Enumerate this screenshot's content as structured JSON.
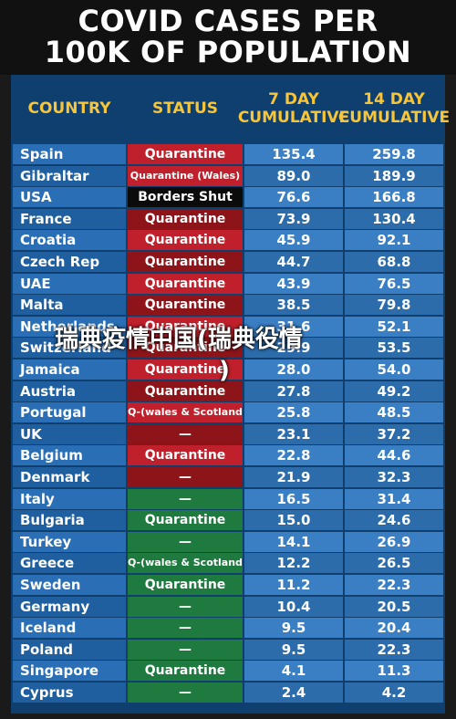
{
  "title_line1": "COVID CASES PER",
  "title_line2": "100K OF POPULATION",
  "watermark_line1": "瑞典疫情中国(瑞典役情",
  "watermark_line2": ")",
  "headers": {
    "country": "COUNTRY",
    "status": "STATUS",
    "day7": "7 DAY\nCUMULATIVE",
    "day14": "14 DAY\nCUMULATIVE"
  },
  "colors": {
    "red": "#c0202b",
    "darkred": "#8d1419",
    "black": "#0b0b0b",
    "green": "#1f7a3f"
  },
  "chart_data": {
    "type": "table",
    "title": "COVID CASES PER 100K OF POPULATION",
    "columns": [
      "COUNTRY",
      "STATUS",
      "7 DAY CUMULATIVE",
      "14 DAY CUMULATIVE"
    ],
    "rows": [
      {
        "country": "Spain",
        "status": "Quarantine",
        "s": "red",
        "v7": "135.4",
        "v14": "259.8"
      },
      {
        "country": "Gibraltar",
        "status": "Quarantine (Wales)",
        "s": "red",
        "v7": "89.0",
        "v14": "189.9",
        "small": true
      },
      {
        "country": "USA",
        "status": "Borders Shut",
        "s": "black",
        "v7": "76.6",
        "v14": "166.8"
      },
      {
        "country": "France",
        "status": "Quarantine",
        "s": "darkred",
        "v7": "73.9",
        "v14": "130.4"
      },
      {
        "country": "Croatia",
        "status": "Quarantine",
        "s": "red",
        "v7": "45.9",
        "v14": "92.1"
      },
      {
        "country": "Czech Rep",
        "status": "Quarantine",
        "s": "darkred",
        "v7": "44.7",
        "v14": "68.8"
      },
      {
        "country": "UAE",
        "status": "Quarantine",
        "s": "red",
        "v7": "43.9",
        "v14": "76.5"
      },
      {
        "country": "Malta",
        "status": "Quarantine",
        "s": "darkred",
        "v7": "38.5",
        "v14": "79.8"
      },
      {
        "country": "Netherlands",
        "status": "Quarantine",
        "s": "red",
        "v7": "31.6",
        "v14": "52.1"
      },
      {
        "country": "Switzerland",
        "status": "Quarantine",
        "s": "darkred",
        "v7": "29.9",
        "v14": "53.5"
      },
      {
        "country": "Jamaica",
        "status": "Quarantine",
        "s": "red",
        "v7": "28.0",
        "v14": "54.0"
      },
      {
        "country": "Austria",
        "status": "Quarantine",
        "s": "darkred",
        "v7": "27.8",
        "v14": "49.2"
      },
      {
        "country": "Portugal",
        "status": "Q-(wales & Scotland)",
        "s": "red",
        "v7": "25.8",
        "v14": "48.5",
        "small": true
      },
      {
        "country": "UK",
        "status": "—",
        "s": "darkred",
        "v7": "23.1",
        "v14": "37.2"
      },
      {
        "country": "Belgium",
        "status": "Quarantine",
        "s": "red",
        "v7": "22.8",
        "v14": "44.6"
      },
      {
        "country": "Denmark",
        "status": "—",
        "s": "darkred",
        "v7": "21.9",
        "v14": "32.3"
      },
      {
        "country": "Italy",
        "status": "—",
        "s": "green",
        "v7": "16.5",
        "v14": "31.4"
      },
      {
        "country": "Bulgaria",
        "status": "Quarantine",
        "s": "green",
        "v7": "15.0",
        "v14": "24.6"
      },
      {
        "country": "Turkey",
        "status": "—",
        "s": "green",
        "v7": "14.1",
        "v14": "26.9"
      },
      {
        "country": "Greece",
        "status": "Q-(wales & Scotland)",
        "s": "green",
        "v7": "12.2",
        "v14": "26.5",
        "small": true
      },
      {
        "country": "Sweden",
        "status": "Quarantine",
        "s": "green",
        "v7": "11.2",
        "v14": "22.3"
      },
      {
        "country": "Germany",
        "status": "—",
        "s": "green",
        "v7": "10.4",
        "v14": "20.5"
      },
      {
        "country": "Iceland",
        "status": "—",
        "s": "green",
        "v7": "9.5",
        "v14": "20.4"
      },
      {
        "country": "Poland",
        "status": "—",
        "s": "green",
        "v7": "9.5",
        "v14": "22.3"
      },
      {
        "country": "Singapore",
        "status": "Quarantine",
        "s": "green",
        "v7": "4.1",
        "v14": "11.3"
      },
      {
        "country": "Cyprus",
        "status": "—",
        "s": "green",
        "v7": "2.4",
        "v14": "4.2"
      }
    ]
  }
}
